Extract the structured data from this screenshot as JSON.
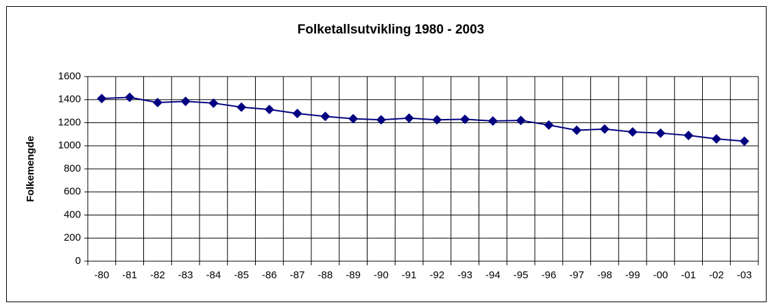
{
  "chart_data": {
    "type": "line",
    "title": "Folketallsutvikling 1980 - 2003",
    "y_label": "Folkemengde",
    "categories": [
      "-80",
      "-81",
      "-82",
      "-83",
      "-84",
      "-85",
      "-86",
      "-87",
      "-88",
      "-89",
      "-90",
      "-91",
      "-92",
      "-93",
      "-94",
      "-95",
      "-96",
      "-97",
      "-98",
      "-99",
      "-00",
      "-01",
      "-02",
      "-03"
    ],
    "values": [
      1410,
      1420,
      1375,
      1385,
      1370,
      1335,
      1315,
      1280,
      1255,
      1235,
      1225,
      1240,
      1225,
      1230,
      1215,
      1220,
      1180,
      1135,
      1145,
      1120,
      1110,
      1090,
      1060,
      1040
    ],
    "color": "#000080",
    "ylim": [
      0,
      1600
    ],
    "yticks": [
      0,
      200,
      400,
      600,
      800,
      1000,
      1200,
      1400,
      1600
    ],
    "grid": true
  }
}
